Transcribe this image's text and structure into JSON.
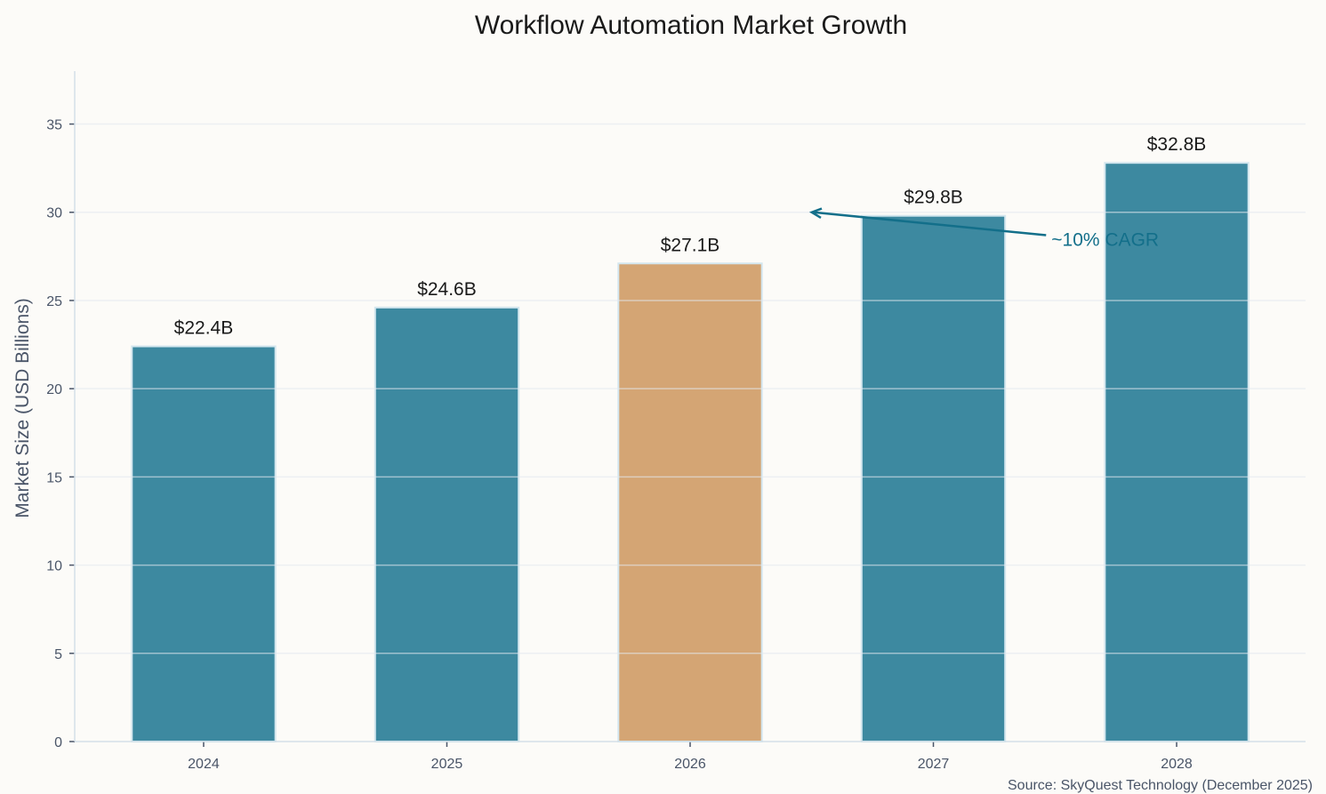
{
  "chart_data": {
    "type": "bar",
    "title": "Workflow Automation Market Growth",
    "xlabel": "",
    "ylabel": "Market Size (USD Billions)",
    "categories": [
      "2024",
      "2025",
      "2026",
      "2027",
      "2028"
    ],
    "values": [
      22.4,
      24.6,
      27.1,
      29.8,
      32.8
    ],
    "data_labels": [
      "$22.4B",
      "$24.6B",
      "$27.1B",
      "$29.8B",
      "$32.8B"
    ],
    "highlight_index": 2,
    "ylim": [
      0,
      38
    ],
    "yticks": [
      0,
      5,
      10,
      15,
      20,
      25,
      30,
      35
    ],
    "grid": "horizontal",
    "colors": {
      "bar": "#3d89a0",
      "highlight": "#d4a574",
      "edge": "#d3e6ee",
      "annotation": "#136f8a",
      "background": "#fcfbf8"
    },
    "annotation": {
      "text": "~10% CAGR",
      "arrow_to": [
        2.5,
        30
      ],
      "text_at": [
        3.5,
        28.5
      ]
    },
    "source": "Source: SkyQuest Technology (December 2025)"
  }
}
